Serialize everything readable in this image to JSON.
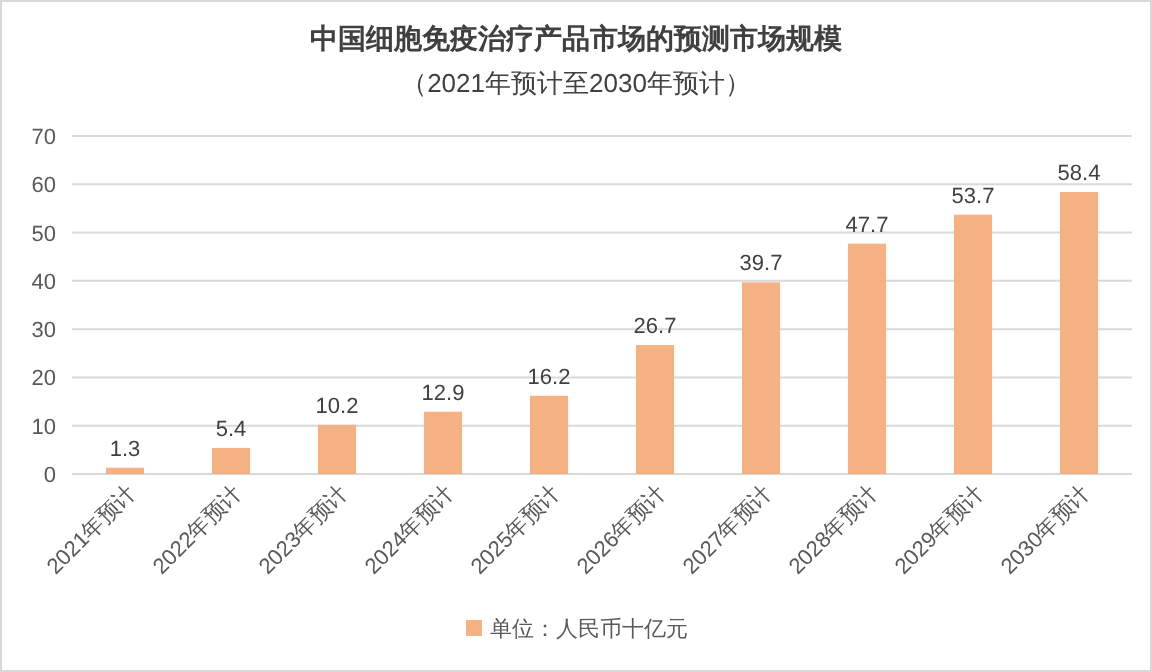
{
  "chart_data": {
    "type": "bar",
    "title": "中国细胞免疫治疗产品市场的预测市场规模",
    "subtitle": "（2021年预计至2030年预计）",
    "categories": [
      "2021年预计",
      "2022年预计",
      "2023年预计",
      "2024年预计",
      "2025年预计",
      "2026年预计",
      "2027年预计",
      "2028年预计",
      "2029年预计",
      "2030年预计"
    ],
    "series": [
      {
        "name": "单位：人民币十亿元",
        "color": "#f4b183",
        "values": [
          1.3,
          5.4,
          10.2,
          12.9,
          16.2,
          26.7,
          39.7,
          47.7,
          53.7,
          58.4
        ]
      }
    ],
    "ylim": [
      0,
      70
    ],
    "yticks": [
      0,
      10,
      20,
      30,
      40,
      50,
      60,
      70
    ],
    "grid": "y",
    "legend": "bottom",
    "data_labels": true
  }
}
